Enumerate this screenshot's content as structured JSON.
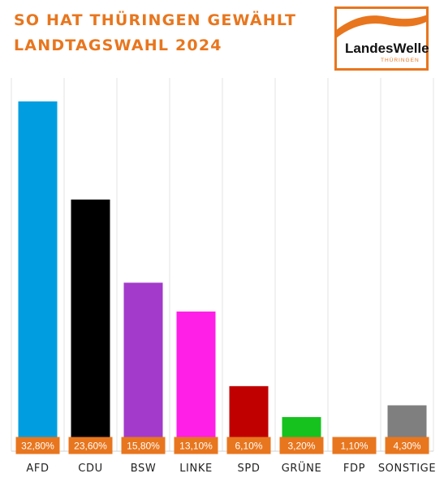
{
  "header": {
    "title_line1": "SO HAT THÜRINGEN GEWÄHLT",
    "title_line2": "LANDTAGSWAHL 2024"
  },
  "logo": {
    "text_main": "LandesWelle",
    "text_sub": "THÜRINGEN",
    "brand_color": "#e8761e"
  },
  "chart_data": {
    "type": "bar",
    "categories": [
      "AFD",
      "CDU",
      "BSW",
      "LINKE",
      "SPD",
      "GRÜNE",
      "FDP",
      "SONSTIGE"
    ],
    "values": [
      32.8,
      23.6,
      15.8,
      13.1,
      6.1,
      3.2,
      1.1,
      4.3
    ],
    "data_labels": [
      "32,80%",
      "23,60%",
      "15,80%",
      "13,10%",
      "6,10%",
      "3,20%",
      "1,10%",
      "4,30%"
    ],
    "colors": [
      "#009ee0",
      "#000000",
      "#a33acb",
      "#ff1fe6",
      "#c00000",
      "#15c21e",
      "#f7c600",
      "#7f7f7f"
    ],
    "label_box_color": "#e8761e",
    "ylim": [
      0,
      35
    ],
    "grid": "vertical separators",
    "legend": "none"
  }
}
